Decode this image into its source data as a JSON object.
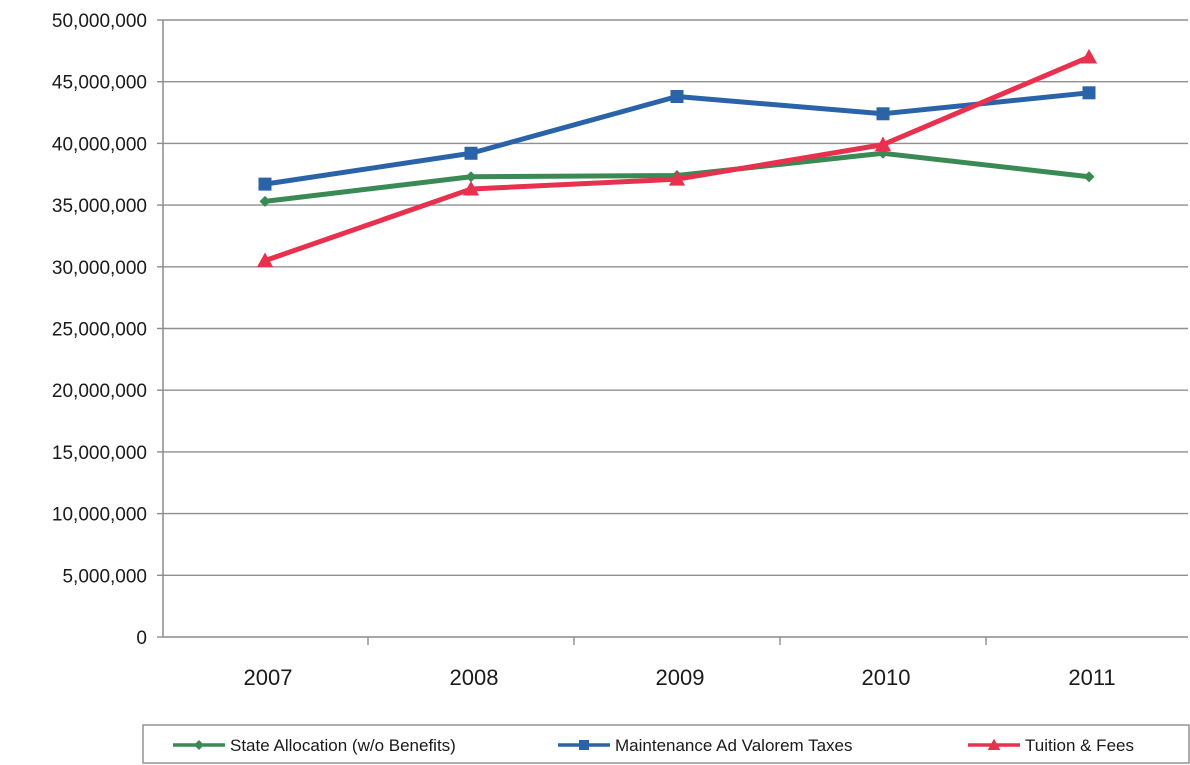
{
  "chart_data": {
    "type": "line",
    "title": "",
    "xlabel": "",
    "ylabel": "",
    "categories": [
      "2007",
      "2008",
      "2009",
      "2010",
      "2011"
    ],
    "ylim": [
      0,
      50000000
    ],
    "ytick_step": 5000000,
    "ytick_labels": [
      "0",
      "5,000,000",
      "10,000,000",
      "15,000,000",
      "20,000,000",
      "25,000,000",
      "30,000,000",
      "35,000,000",
      "40,000,000",
      "45,000,000",
      "50,000,000"
    ],
    "grid": "horizontal",
    "legend_position": "bottom",
    "series": [
      {
        "name": "State Allocation (w/o Benefits)",
        "values": [
          35300000,
          37300000,
          37400000,
          39200000,
          37300000
        ],
        "color": "#3a8a55",
        "marker": "diamond"
      },
      {
        "name": "Maintenance Ad Valorem Taxes",
        "values": [
          36700000,
          39200000,
          43800000,
          42400000,
          44100000
        ],
        "color": "#2a63a8",
        "marker": "square"
      },
      {
        "name": "Tuition & Fees",
        "values": [
          30500000,
          36300000,
          37100000,
          39900000,
          47000000
        ],
        "color": "#e8304f",
        "marker": "triangle"
      }
    ]
  }
}
